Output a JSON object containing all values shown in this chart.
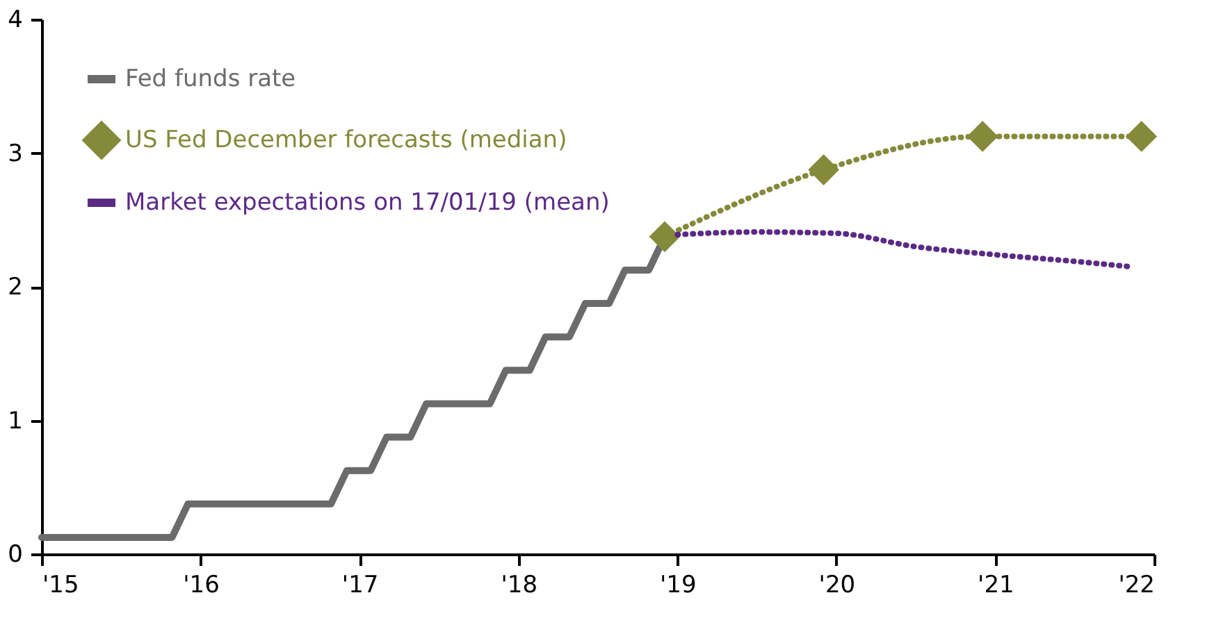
{
  "chart_data": {
    "type": "line",
    "xlim": [
      2015,
      2022
    ],
    "xticks": [
      {
        "value": 2015,
        "label": "'15"
      },
      {
        "value": 2016,
        "label": "'16"
      },
      {
        "value": 2017,
        "label": "'17"
      },
      {
        "value": 2018,
        "label": "'18"
      },
      {
        "value": 2019,
        "label": "'19"
      },
      {
        "value": 2020,
        "label": "'20"
      },
      {
        "value": 2021,
        "label": "'21"
      },
      {
        "value": 2022,
        "label": "'22"
      }
    ],
    "ylim": [
      0,
      4
    ],
    "yticks": [
      0,
      1,
      2,
      3,
      4
    ],
    "grid": false,
    "legend": "top left",
    "series": [
      {
        "name": "Fed funds rate",
        "color": "#6b6b6b",
        "line_style": "solid",
        "marker": "none",
        "x": [
          2015,
          2015.82,
          2015.92,
          2016.82,
          2016.92,
          2017.07,
          2017.17,
          2017.32,
          2017.42,
          2017.82,
          2017.92,
          2018.07,
          2018.17,
          2018.32,
          2018.42,
          2018.57,
          2018.67,
          2018.82,
          2018.92
        ],
        "values": [
          0.125,
          0.125,
          0.375,
          0.375,
          0.625,
          0.625,
          0.875,
          0.875,
          1.125,
          1.125,
          1.375,
          1.375,
          1.625,
          1.625,
          1.875,
          1.875,
          2.125,
          2.125,
          2.375
        ]
      },
      {
        "name": "US Fed December forecasts (median)",
        "color": "#858a3a",
        "line_style": "dotted",
        "marker": "diamond",
        "x": [
          2018.92,
          2019.92,
          2020.92,
          2021.92
        ],
        "values": [
          2.375,
          2.875,
          3.125,
          3.125
        ]
      },
      {
        "name": "Market expectations on 17/01/19 (mean)",
        "color": "#5b2a86",
        "line_style": "dotted",
        "marker": "none",
        "x": [
          2019.0,
          2019.5,
          2020.0,
          2020.5,
          2021.0,
          2021.5,
          2021.85
        ],
        "values": [
          2.39,
          2.41,
          2.4,
          2.3,
          2.24,
          2.19,
          2.15
        ]
      }
    ]
  }
}
